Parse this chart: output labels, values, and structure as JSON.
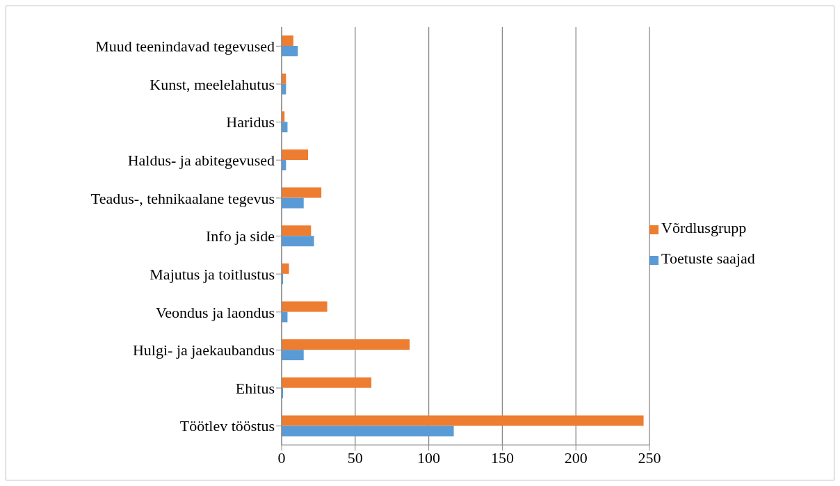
{
  "chart_data": {
    "type": "bar",
    "orientation": "horizontal",
    "categories": [
      "Muud teenindavad tegevused",
      "Kunst, meelelahutus",
      "Haridus",
      "Haldus- ja abitegevused",
      "Teadus-, tehnikaalane tegevus",
      "Info ja side",
      "Majutus ja toitlustus",
      "Veondus ja laondus",
      "Hulgi- ja jaekaubandus",
      "Ehitus",
      "Töötlev tööstus"
    ],
    "series": [
      {
        "name": "Võrdlusgrupp",
        "color": "#ed7d31",
        "values": [
          8,
          3,
          2,
          18,
          27,
          20,
          5,
          31,
          87,
          61,
          246
        ]
      },
      {
        "name": "Toetuste saajad",
        "color": "#5b9bd5",
        "values": [
          11,
          3,
          4,
          3,
          15,
          22,
          1,
          4,
          15,
          1,
          117
        ]
      }
    ],
    "xlim": [
      0,
      250
    ],
    "xticks": [
      0,
      50,
      100,
      150,
      200,
      250
    ],
    "grid": "x",
    "legend": "right"
  }
}
